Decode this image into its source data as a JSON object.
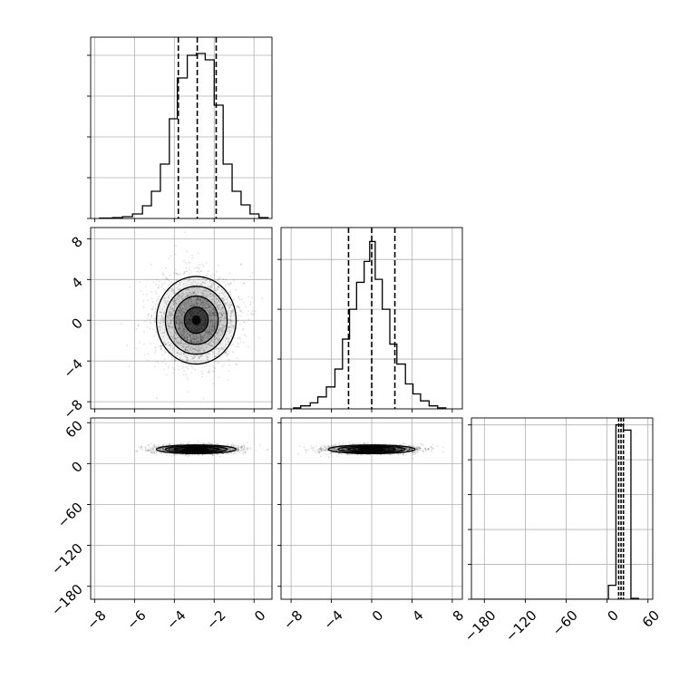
{
  "colors": {
    "line": "#000000",
    "grid": "#b0b0b0",
    "fill": "#000000",
    "points": "#000000"
  },
  "chart_data": {
    "type": "corner",
    "title": "",
    "parameters": [
      "",
      "",
      ""
    ],
    "grid": true,
    "panels": [
      {
        "id": "hist-0",
        "type": "histogram",
        "xlim": [
          -8.2,
          0.9
        ],
        "xticks": [
          -8,
          -6,
          -4,
          -2,
          0
        ],
        "xtick_labels": [],
        "quantile_lines": [
          -3.8,
          -2.85,
          -1.9
        ],
        "bins": [
          {
            "x0": -7.75,
            "x1": -7.1,
            "count": 0.5
          },
          {
            "x0": -7.1,
            "x1": -6.6,
            "count": 1
          },
          {
            "x0": -6.6,
            "x1": -6.1,
            "count": 2
          },
          {
            "x0": -6.1,
            "x1": -5.6,
            "count": 5
          },
          {
            "x0": -5.6,
            "x1": -5.15,
            "count": 14
          },
          {
            "x0": -5.15,
            "x1": -4.7,
            "count": 30
          },
          {
            "x0": -4.7,
            "x1": -4.25,
            "count": 60
          },
          {
            "x0": -4.25,
            "x1": -3.85,
            "count": 110
          },
          {
            "x0": -3.85,
            "x1": -3.35,
            "count": 155
          },
          {
            "x0": -3.35,
            "x1": -2.9,
            "count": 180
          },
          {
            "x0": -2.9,
            "x1": -2.45,
            "count": 182
          },
          {
            "x0": -2.45,
            "x1": -2.0,
            "count": 175
          },
          {
            "x0": -2.0,
            "x1": -1.55,
            "count": 125
          },
          {
            "x0": -1.55,
            "x1": -1.1,
            "count": 60
          },
          {
            "x0": -1.1,
            "x1": -0.65,
            "count": 30
          },
          {
            "x0": -0.65,
            "x1": -0.2,
            "count": 15
          },
          {
            "x0": -0.2,
            "x1": 0.25,
            "count": 5
          },
          {
            "x0": 0.25,
            "x1": 0.7,
            "count": 1
          }
        ],
        "ymax": 200,
        "yticks": [
          0,
          45,
          90,
          135,
          180
        ]
      },
      {
        "id": "scatter-1-0",
        "type": "density",
        "xlim": [
          -8.2,
          0.9
        ],
        "ylim": [
          -8.7,
          9.1
        ],
        "xticks": [
          -8,
          -6,
          -4,
          -2,
          0
        ],
        "xtick_labels": [],
        "yticks": [
          -8,
          -4,
          0,
          4,
          8
        ],
        "ytick_labels": [
          "−8",
          "−4",
          "0",
          "4",
          "8"
        ],
        "center": [
          -2.9,
          0.0
        ],
        "sd": [
          1.0,
          2.15
        ],
        "points": 2500
      },
      {
        "id": "hist-1",
        "type": "histogram",
        "xlim": [
          -9,
          9
        ],
        "xticks": [
          -8,
          -4,
          0,
          4,
          8
        ],
        "xtick_labels": [],
        "quantile_lines": [
          -2.3,
          0.0,
          2.3
        ],
        "bins": [
          {
            "x0": -7.75,
            "x1": -7.05,
            "count": 1
          },
          {
            "x0": -7.05,
            "x1": -6.1,
            "count": 3
          },
          {
            "x0": -6.1,
            "x1": -5.35,
            "count": 6
          },
          {
            "x0": -5.35,
            "x1": -4.5,
            "count": 12
          },
          {
            "x0": -4.5,
            "x1": -3.65,
            "count": 22
          },
          {
            "x0": -3.65,
            "x1": -2.9,
            "count": 40
          },
          {
            "x0": -2.9,
            "x1": -2.2,
            "count": 70
          },
          {
            "x0": -2.2,
            "x1": -1.5,
            "count": 100
          },
          {
            "x0": -1.5,
            "x1": -0.75,
            "count": 127
          },
          {
            "x0": -0.75,
            "x1": -0.2,
            "count": 148
          },
          {
            "x0": -0.2,
            "x1": 0.35,
            "count": 168
          },
          {
            "x0": 0.35,
            "x1": 1.05,
            "count": 130
          },
          {
            "x0": 1.05,
            "x1": 1.8,
            "count": 100
          },
          {
            "x0": 1.8,
            "x1": 2.5,
            "count": 65
          },
          {
            "x0": 2.5,
            "x1": 3.35,
            "count": 45
          },
          {
            "x0": 3.35,
            "x1": 4.1,
            "count": 25
          },
          {
            "x0": 4.1,
            "x1": 4.85,
            "count": 15
          },
          {
            "x0": 4.85,
            "x1": 5.7,
            "count": 8
          },
          {
            "x0": 5.7,
            "x1": 6.55,
            "count": 3
          },
          {
            "x0": 6.55,
            "x1": 7.35,
            "count": 1
          }
        ],
        "ymax": 182,
        "yticks": [
          0,
          50,
          100,
          150
        ]
      },
      {
        "id": "scatter-2-0",
        "type": "density",
        "xlim": [
          -8.2,
          0.9
        ],
        "ylim": [
          -199,
          67
        ],
        "xticks": [
          -8,
          -6,
          -4,
          -2,
          0
        ],
        "xtick_labels": [
          "−8",
          "−6",
          "−4",
          "−2",
          "0"
        ],
        "yticks": [
          -180,
          -120,
          -60,
          0,
          60
        ],
        "ytick_labels": [
          "−180",
          "−120",
          "−60",
          "0",
          "60"
        ],
        "center": [
          -2.9,
          21
        ],
        "sd": [
          1.0,
          3.2
        ],
        "points": 2500
      },
      {
        "id": "scatter-2-1",
        "type": "density",
        "xlim": [
          -9,
          9
        ],
        "ylim": [
          -199,
          67
        ],
        "xticks": [
          -8,
          -4,
          0,
          4,
          8
        ],
        "xtick_labels": [
          "−8",
          "−4",
          "0",
          "4",
          "8"
        ],
        "yticks": [
          -180,
          -120,
          -60,
          0,
          60
        ],
        "ytick_labels": [],
        "center": [
          0,
          21
        ],
        "sd": [
          2.15,
          3.2
        ],
        "points": 2500
      },
      {
        "id": "hist-2",
        "type": "histogram",
        "xlim": [
          -199,
          67
        ],
        "xticks": [
          -180,
          -120,
          -60,
          0,
          60
        ],
        "xtick_labels": [
          "−180",
          "−120",
          "−60",
          "0",
          "60"
        ],
        "quantile_lines": [
          17,
          20.5,
          24
        ],
        "bins": [
          {
            "x0": -200,
            "x1": 2,
            "count": 0
          },
          {
            "x0": 2,
            "x1": 13,
            "count": 8
          },
          {
            "x0": 13,
            "x1": 24,
            "count": 100
          },
          {
            "x0": 24,
            "x1": 35,
            "count": 97
          },
          {
            "x0": 35,
            "x1": 46,
            "count": 0.5
          }
        ],
        "ymax": 104,
        "yticks": [
          0,
          20,
          40,
          60,
          80,
          100
        ]
      }
    ]
  }
}
